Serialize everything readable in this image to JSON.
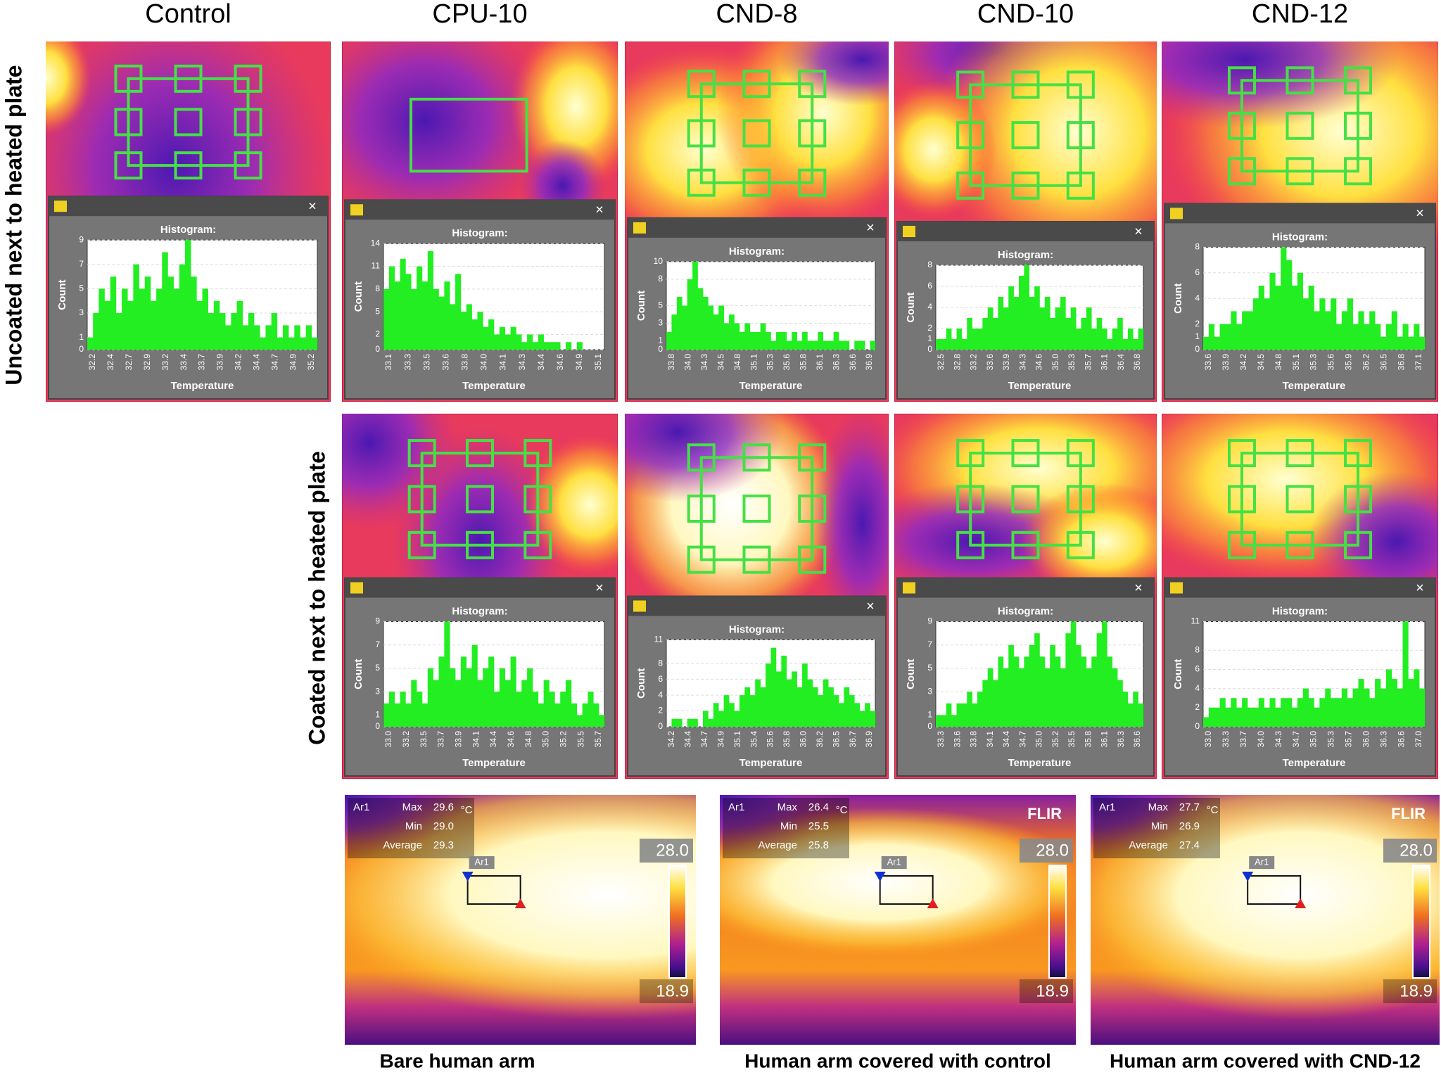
{
  "columns": [
    "Control",
    "CPU-10",
    "CND-8",
    "CND-10",
    "CND-12"
  ],
  "row_labels": [
    "Uncoated next to heated plate",
    "Coated next to heated plate"
  ],
  "uncoated": [
    {
      "title": "Histogram:",
      "x_label": "Temperature",
      "y_label": "Count",
      "ylim": [
        0,
        9
      ],
      "yticks": [
        0,
        1,
        3,
        5,
        7,
        9
      ],
      "xticks": [
        "32.2",
        "32.4",
        "32.7",
        "32.9",
        "33.2",
        "33.4",
        "33.7",
        "33.9",
        "34.2",
        "34.4",
        "34.7",
        "34.9",
        "35.2"
      ],
      "counts": [
        1,
        3,
        5,
        4,
        6,
        3,
        5,
        4,
        7,
        5,
        6,
        4,
        5,
        8,
        6,
        5,
        7,
        9,
        6,
        4,
        5,
        3,
        4,
        3,
        2,
        3,
        4,
        2,
        3,
        2,
        1,
        2,
        3,
        1,
        2,
        1,
        2,
        1,
        2,
        1
      ]
    },
    {
      "title": "Histogram:",
      "x_label": "Temperature",
      "y_label": "Count",
      "ylim": [
        0,
        14
      ],
      "yticks": [
        0,
        2,
        5,
        8,
        11,
        14
      ],
      "xticks": [
        "33.1",
        "33.3",
        "33.5",
        "33.6",
        "33.8",
        "34.0",
        "34.1",
        "34.3",
        "34.4",
        "34.6",
        "34.9",
        "35.1"
      ],
      "counts": [
        8,
        11,
        9,
        12,
        10,
        8,
        11,
        9,
        13,
        8,
        7,
        9,
        6,
        10,
        5,
        6,
        4,
        5,
        3,
        4,
        2,
        3,
        2,
        3,
        2,
        1,
        2,
        1,
        2,
        1,
        1,
        1,
        0,
        1,
        0,
        1,
        0,
        0,
        0,
        0
      ]
    },
    {
      "title": "Histogram:",
      "x_label": "Temperature",
      "y_label": "Count",
      "ylim": [
        0,
        10
      ],
      "yticks": [
        0,
        1,
        3,
        5,
        8,
        10
      ],
      "xticks": [
        "33.8",
        "34.0",
        "34.3",
        "34.5",
        "34.8",
        "35.1",
        "35.3",
        "35.6",
        "35.8",
        "36.1",
        "36.3",
        "36.6",
        "36.9"
      ],
      "counts": [
        2,
        4,
        6,
        5,
        8,
        10,
        7,
        6,
        5,
        4,
        5,
        3,
        4,
        3,
        2,
        3,
        2,
        2,
        3,
        2,
        1,
        2,
        2,
        1,
        2,
        1,
        2,
        1,
        1,
        2,
        1,
        1,
        2,
        1,
        1,
        0,
        1,
        1,
        0,
        1
      ]
    },
    {
      "title": "Histogram:",
      "x_label": "Temperature",
      "y_label": "Count",
      "ylim": [
        0,
        8
      ],
      "yticks": [
        0,
        1,
        2,
        4,
        6,
        8
      ],
      "xticks": [
        "32.5",
        "32.8",
        "33.2",
        "33.6",
        "33.9",
        "34.3",
        "34.6",
        "35.0",
        "35.3",
        "35.7",
        "36.1",
        "36.4",
        "36.8"
      ],
      "counts": [
        1,
        1,
        2,
        1,
        2,
        1,
        3,
        2,
        2,
        3,
        4,
        3,
        5,
        4,
        6,
        5,
        7,
        8,
        5,
        6,
        4,
        5,
        3,
        4,
        5,
        3,
        4,
        2,
        3,
        4,
        2,
        3,
        2,
        1,
        2,
        3,
        1,
        2,
        1,
        2
      ]
    },
    {
      "title": "Histogram:",
      "x_label": "Temperature",
      "y_label": "Count",
      "ylim": [
        0,
        8
      ],
      "yticks": [
        0,
        1,
        2,
        4,
        6,
        8
      ],
      "xticks": [
        "33.6",
        "33.9",
        "34.2",
        "34.5",
        "34.8",
        "35.1",
        "35.3",
        "35.6",
        "35.9",
        "36.2",
        "36.5",
        "36.8",
        "37.1"
      ],
      "counts": [
        1,
        2,
        1,
        2,
        2,
        3,
        2,
        3,
        3,
        4,
        5,
        4,
        6,
        5,
        8,
        7,
        5,
        6,
        4,
        5,
        3,
        4,
        3,
        4,
        2,
        3,
        4,
        2,
        3,
        2,
        3,
        2,
        1,
        2,
        3,
        1,
        2,
        1,
        2,
        1
      ]
    }
  ],
  "coated": [
    {
      "title": "Histogram:",
      "x_label": "Temperature",
      "y_label": "Count",
      "ylim": [
        0,
        9
      ],
      "yticks": [
        0,
        1,
        3,
        5,
        7,
        9
      ],
      "xticks": [
        "33.0",
        "33.2",
        "33.5",
        "33.7",
        "33.9",
        "34.1",
        "34.4",
        "34.6",
        "34.8",
        "35.0",
        "35.2",
        "35.5",
        "35.7"
      ],
      "counts": [
        2,
        3,
        2,
        3,
        2,
        4,
        3,
        2,
        5,
        4,
        6,
        9,
        5,
        4,
        6,
        5,
        7,
        4,
        5,
        6,
        3,
        5,
        4,
        6,
        3,
        4,
        5,
        3,
        2,
        4,
        3,
        2,
        3,
        4,
        2,
        1,
        2,
        3,
        2,
        1
      ]
    },
    {
      "title": "Histogram:",
      "x_label": "Temperature",
      "y_label": "Count",
      "ylim": [
        0,
        11
      ],
      "yticks": [
        0,
        2,
        4,
        6,
        8,
        11
      ],
      "xticks": [
        "34.2",
        "34.4",
        "34.7",
        "34.9",
        "35.1",
        "35.4",
        "35.6",
        "35.8",
        "36.0",
        "36.2",
        "36.5",
        "36.7",
        "36.9"
      ],
      "counts": [
        0,
        1,
        1,
        0,
        1,
        1,
        0,
        2,
        1,
        3,
        2,
        4,
        3,
        2,
        4,
        5,
        4,
        6,
        5,
        8,
        10,
        7,
        9,
        6,
        7,
        5,
        8,
        6,
        5,
        4,
        6,
        5,
        4,
        3,
        5,
        4,
        3,
        2,
        3,
        2
      ]
    },
    {
      "title": "Histogram:",
      "x_label": "Temperature",
      "y_label": "Count",
      "ylim": [
        0,
        9
      ],
      "yticks": [
        0,
        1,
        3,
        5,
        7,
        9
      ],
      "xticks": [
        "33.3",
        "33.6",
        "33.8",
        "34.1",
        "34.4",
        "34.7",
        "35.0",
        "35.2",
        "35.5",
        "35.8",
        "36.1",
        "36.3",
        "36.6"
      ],
      "counts": [
        1,
        1,
        2,
        1,
        2,
        2,
        3,
        2,
        3,
        4,
        5,
        4,
        6,
        5,
        7,
        6,
        5,
        6,
        7,
        8,
        6,
        5,
        7,
        6,
        5,
        8,
        9,
        7,
        6,
        5,
        6,
        8,
        9,
        6,
        5,
        4,
        3,
        2,
        3,
        2
      ]
    },
    {
      "title": "Histogram:",
      "x_label": "Temperature",
      "y_label": "Count",
      "ylim": [
        0,
        11
      ],
      "yticks": [
        0,
        2,
        4,
        6,
        8,
        11
      ],
      "xticks": [
        "33.0",
        "33.3",
        "33.7",
        "34.0",
        "34.3",
        "34.7",
        "35.0",
        "35.3",
        "35.7",
        "36.0",
        "36.3",
        "36.6",
        "37.0"
      ],
      "counts": [
        1,
        2,
        2,
        3,
        2,
        3,
        2,
        3,
        2,
        2,
        3,
        2,
        3,
        2,
        3,
        3,
        2,
        3,
        4,
        3,
        2,
        3,
        4,
        3,
        3,
        4,
        3,
        4,
        5,
        4,
        3,
        5,
        4,
        6,
        5,
        4,
        11,
        5,
        6,
        4
      ]
    }
  ],
  "arm_images": [
    {
      "caption": "Bare human arm",
      "area": "Ar1",
      "unit": "°C",
      "scale_max": "28.0",
      "scale_min": "18.9",
      "stats": [
        {
          "label": "Max",
          "value": "29.6"
        },
        {
          "label": "Min",
          "value": "29.0"
        },
        {
          "label": "Average",
          "value": "29.3"
        }
      ]
    },
    {
      "caption": "Human arm covered with control",
      "area": "Ar1",
      "unit": "°C",
      "scale_max": "28.0",
      "scale_min": "18.9",
      "logo": "FLIR",
      "stats": [
        {
          "label": "Max",
          "value": "26.4"
        },
        {
          "label": "Min",
          "value": "25.5"
        },
        {
          "label": "Average",
          "value": "25.8"
        }
      ]
    },
    {
      "caption": "Human arm covered with CND-12",
      "area": "Ar1",
      "unit": "°C",
      "scale_max": "28.0",
      "scale_min": "18.9",
      "logo": "FLIR",
      "stats": [
        {
          "label": "Max",
          "value": "27.7"
        },
        {
          "label": "Min",
          "value": "26.9"
        },
        {
          "label": "Average",
          "value": "27.4"
        }
      ]
    }
  ]
}
